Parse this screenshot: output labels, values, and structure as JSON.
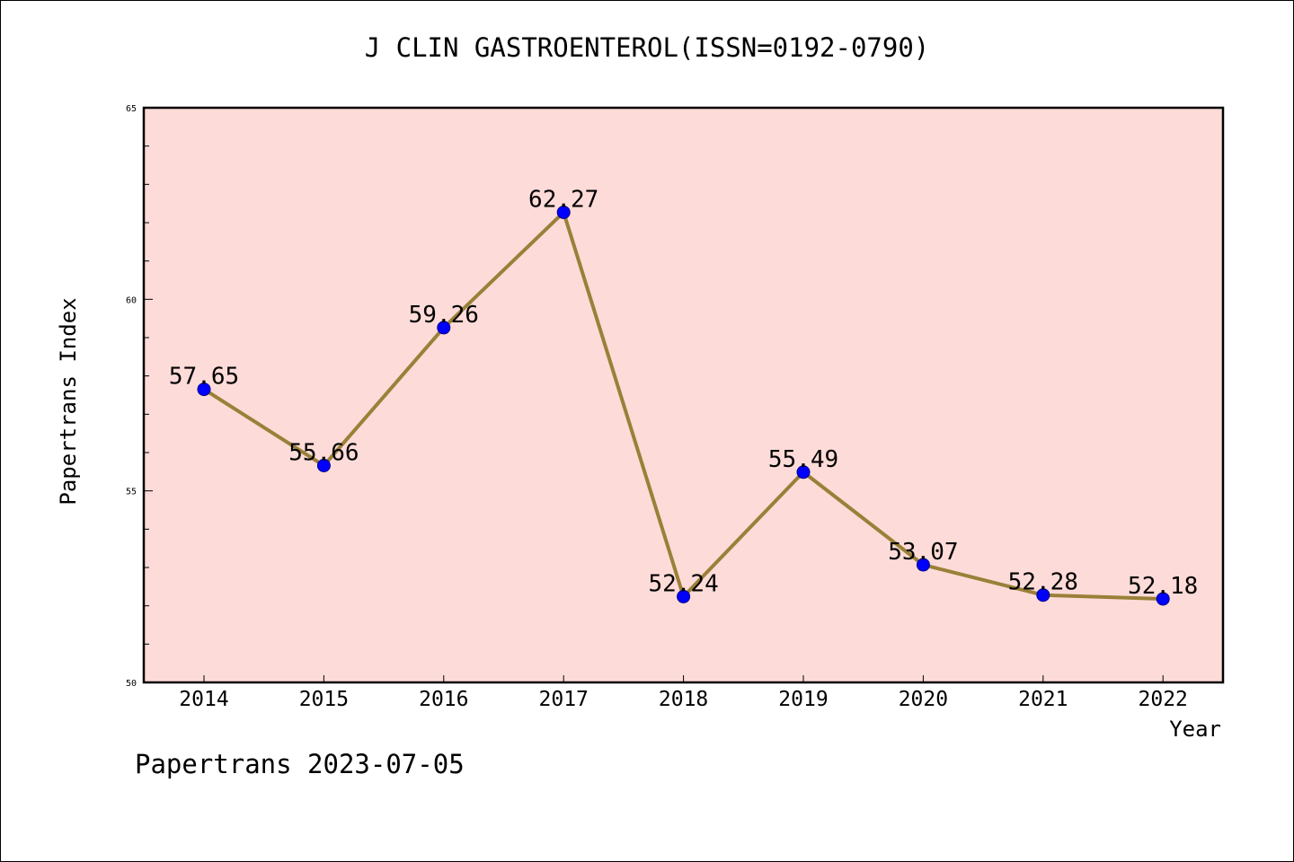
{
  "title": "J CLIN GASTROENTEROL(ISSN=0192-0790)",
  "footer": "Papertrans 2023-07-05",
  "colors": {
    "plot_background": "#fddbd8",
    "line": "#9a8038",
    "marker": "#0000ff",
    "text": "#000000"
  },
  "chart_data": {
    "type": "line",
    "title": "J CLIN GASTROENTEROL(ISSN=0192-0790)",
    "xlabel": "Year",
    "ylabel": "Papertrans Index",
    "categories": [
      "2014",
      "2015",
      "2016",
      "2017",
      "2018",
      "2019",
      "2020",
      "2021",
      "2022"
    ],
    "series": [
      {
        "values": [
          57.65,
          55.66,
          59.26,
          62.27,
          52.24,
          55.49,
          53.07,
          52.28,
          52.18
        ]
      }
    ],
    "data_labels": [
      "57.65",
      "55.66",
      "59.26",
      "62.27",
      "52.24",
      "55.49",
      "53.07",
      "52.28",
      "52.18"
    ],
    "ylim": [
      50,
      65
    ],
    "y_ticks": [
      50,
      55,
      60,
      65
    ],
    "y_tick_labels": [
      "50",
      "55",
      "60",
      "65"
    ],
    "y_minor_step": 1,
    "grid": false,
    "legend": "none"
  }
}
